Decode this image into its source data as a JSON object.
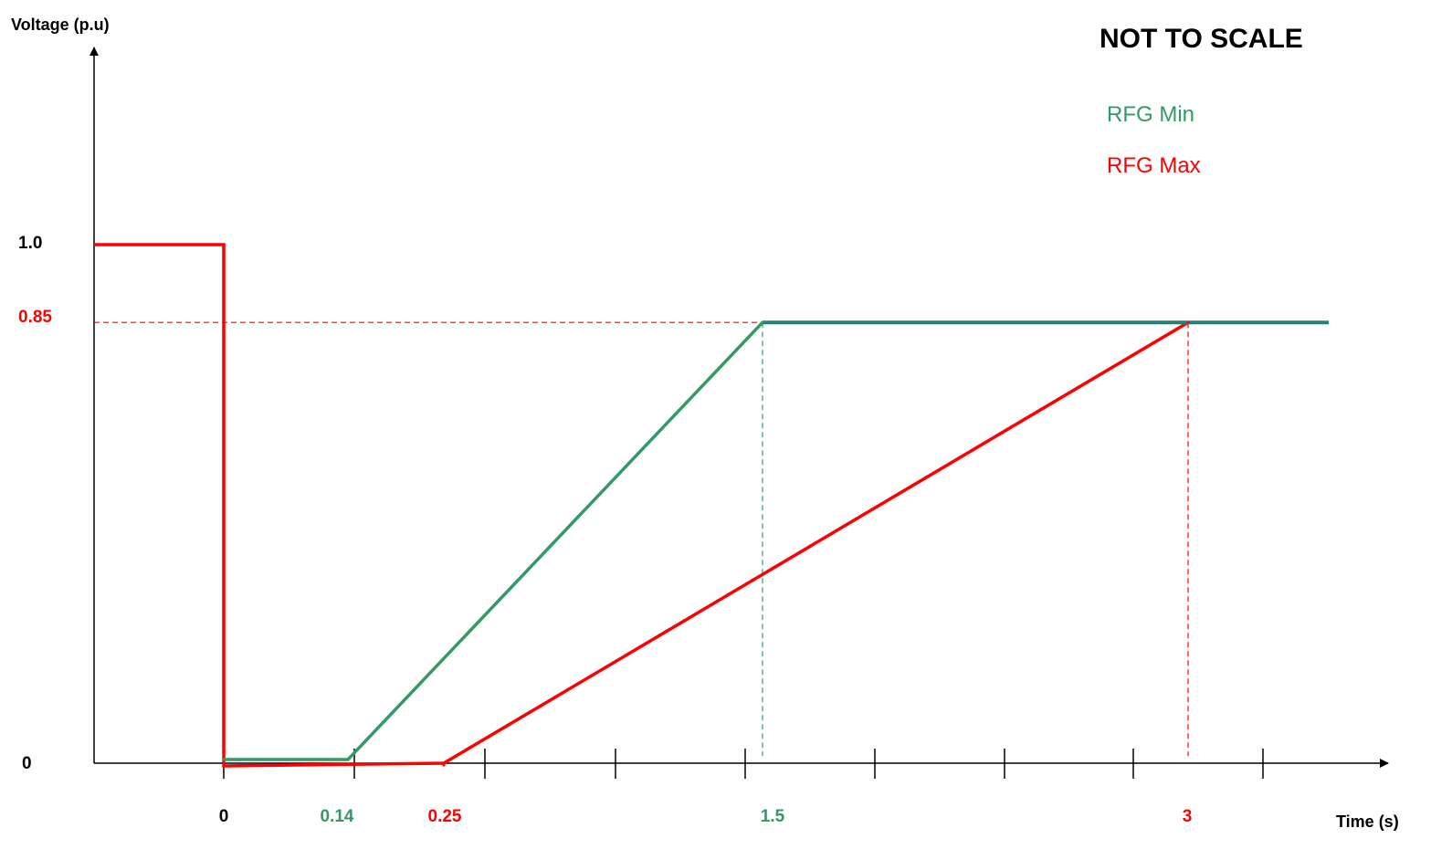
{
  "chart_data": {
    "type": "line",
    "title": "",
    "note": "NOT TO SCALE",
    "ylabel": "Voltage (p.u)",
    "xlabel": "Time (s)",
    "xticks": [
      {
        "label": "0",
        "color": "#000000"
      },
      {
        "label": "0.14",
        "color": "#339966"
      },
      {
        "label": "0.25",
        "color": "#ff0000"
      },
      {
        "label": "1.5",
        "color": "#339966"
      },
      {
        "label": "3",
        "color": "#ff0000"
      }
    ],
    "yticks": [
      {
        "label": "0",
        "value": 0,
        "color": "#000000"
      },
      {
        "label": "0.85",
        "value": 0.85,
        "color": "#ff0000"
      },
      {
        "label": "1.0",
        "value": 1.0,
        "color": "#000000"
      }
    ],
    "legend": [
      {
        "label": "RFG Min",
        "color": "#339966"
      },
      {
        "label": "RFG Max",
        "color": "#ff0000"
      }
    ],
    "series": [
      {
        "name": "RFG Min",
        "color": "#339966",
        "points": [
          [
            0,
            0
          ],
          [
            0.14,
            0
          ],
          [
            1.5,
            0.85
          ],
          [
            3,
            0.85
          ]
        ]
      },
      {
        "name": "RFG Max",
        "color": "#ff0000",
        "points": [
          [
            0,
            1.0
          ],
          [
            0,
            0
          ],
          [
            0.25,
            0
          ],
          [
            3,
            0.85
          ]
        ]
      }
    ],
    "reference_lines": [
      {
        "orientation": "horizontal",
        "value": 0.85,
        "color": "#ff0000",
        "style": "dashed"
      },
      {
        "orientation": "vertical",
        "at": "1.5",
        "color": "#339966",
        "style": "dashed"
      },
      {
        "orientation": "vertical",
        "at": "3",
        "color": "#ff0000",
        "style": "dashed"
      }
    ]
  }
}
